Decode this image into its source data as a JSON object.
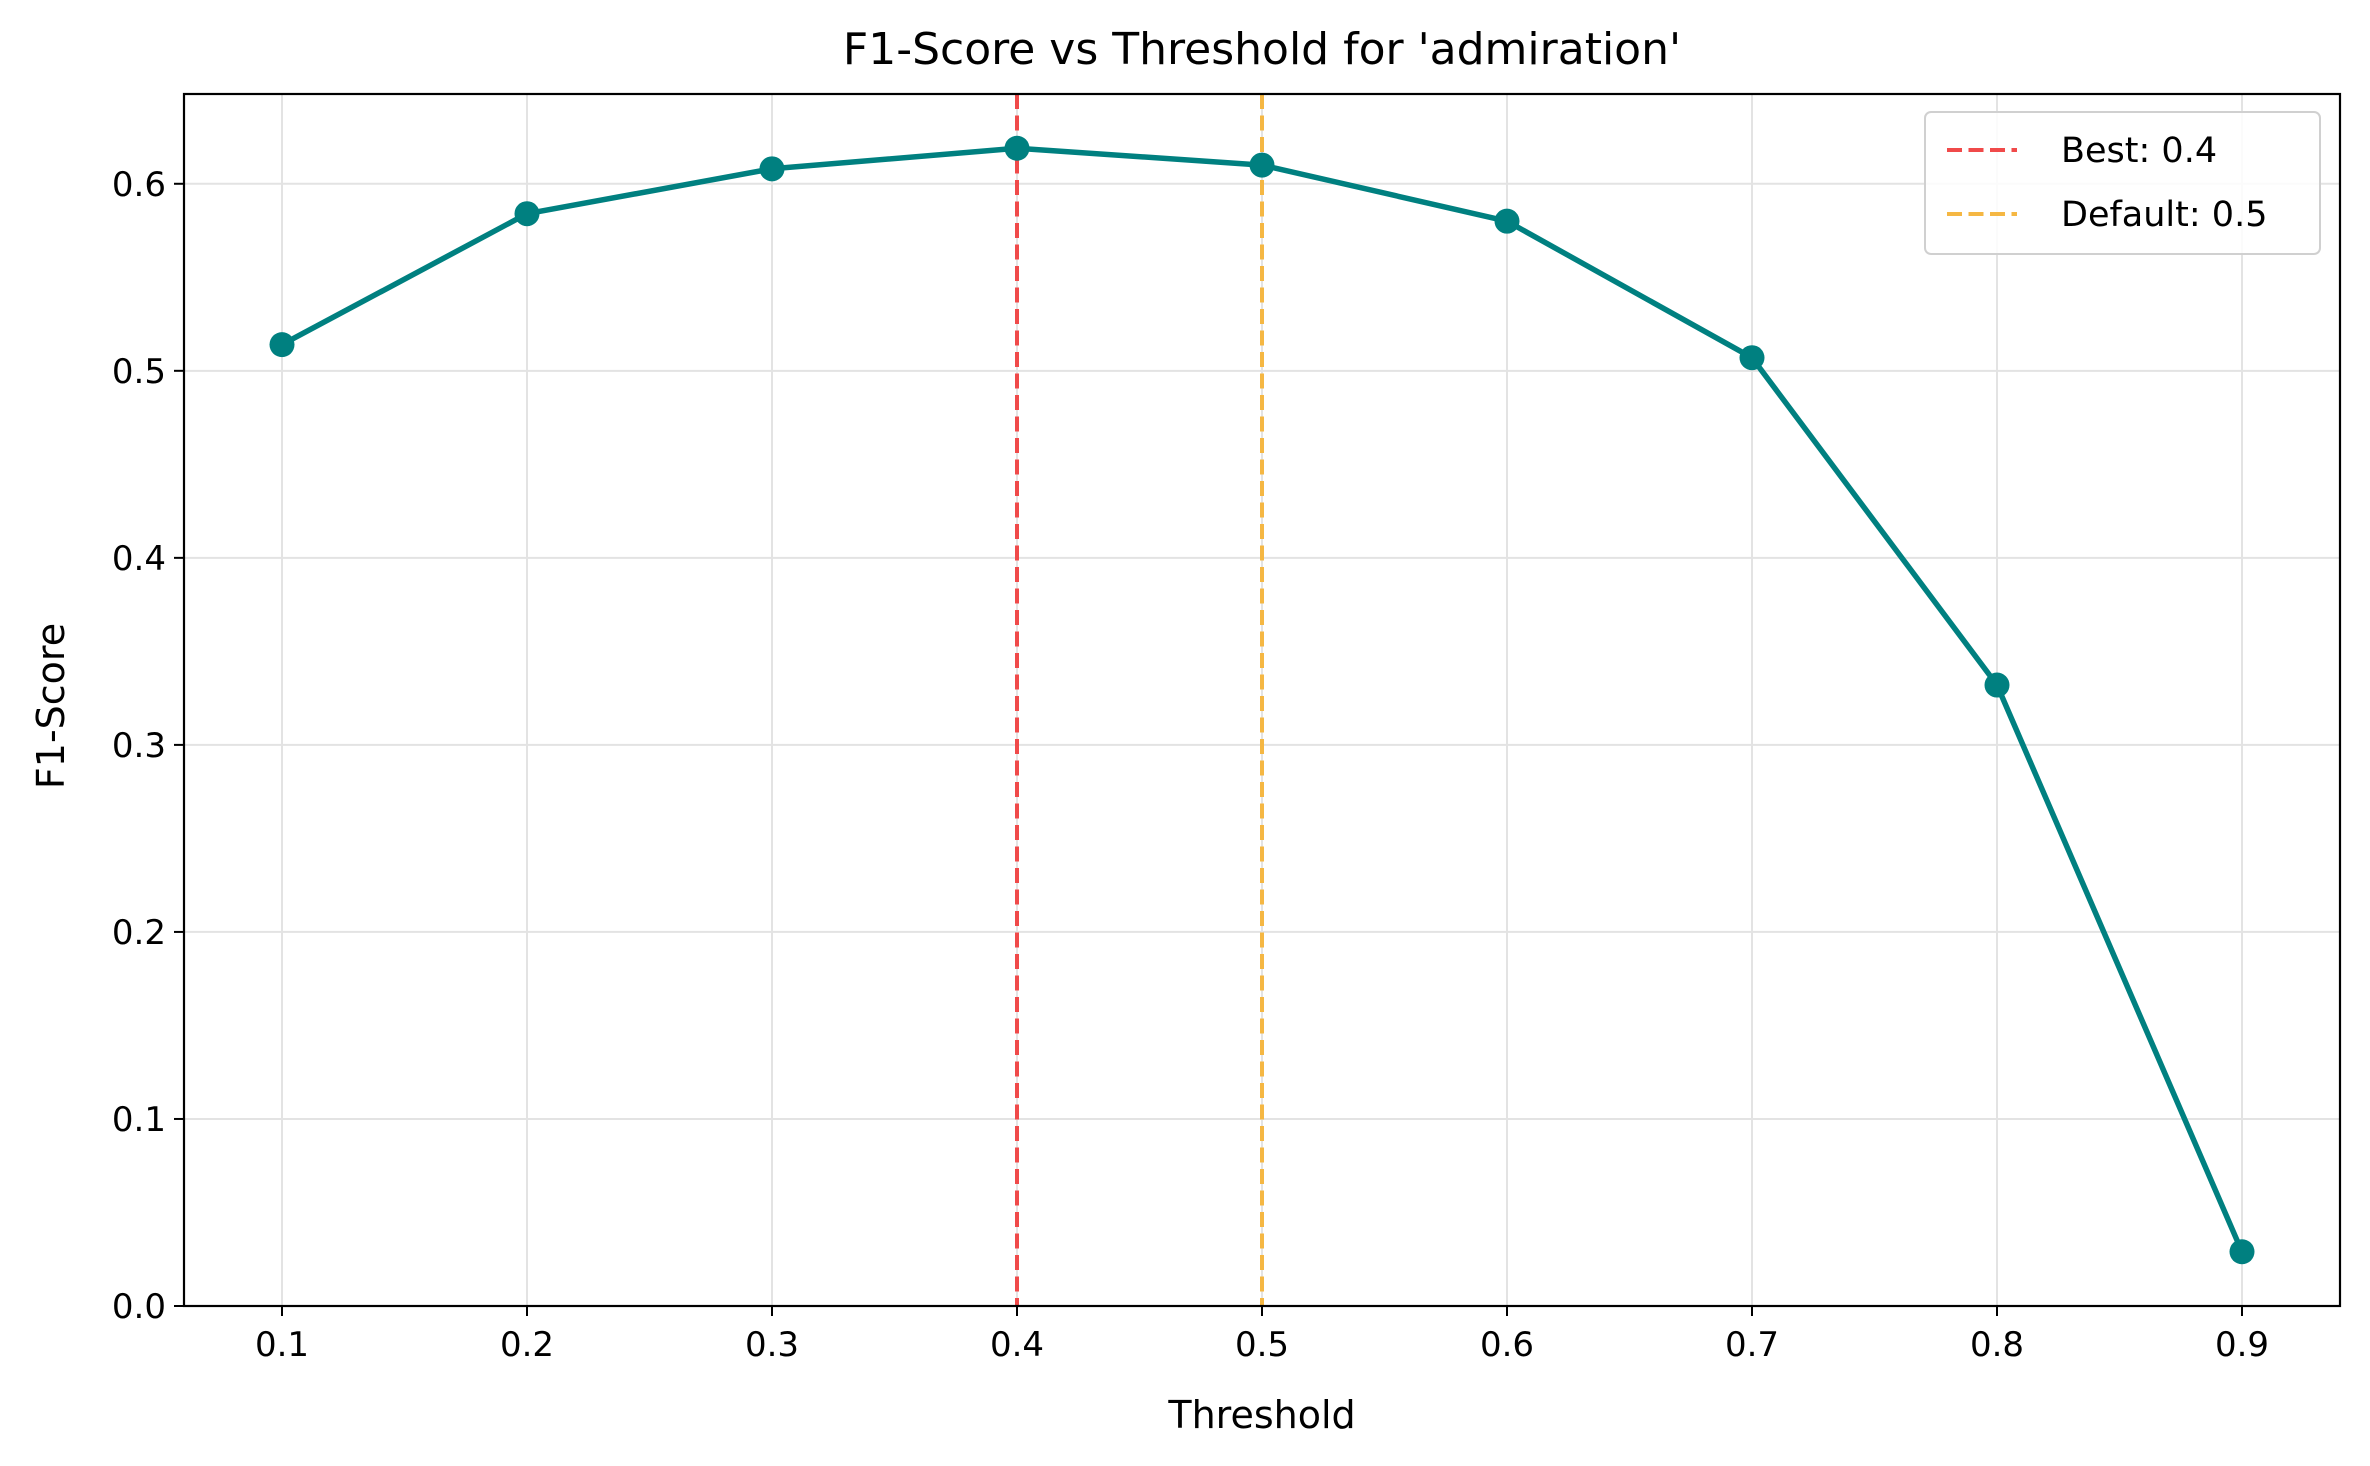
{
  "chart_data": {
    "type": "line",
    "title": "F1-Score vs Threshold for 'admiration'",
    "xlabel": "Threshold",
    "ylabel": "F1-Score",
    "xlim": [
      0.06,
      0.94
    ],
    "ylim": [
      0.0,
      0.648
    ],
    "xticks": [
      "0.1",
      "0.2",
      "0.3",
      "0.4",
      "0.5",
      "0.6",
      "0.7",
      "0.8",
      "0.9"
    ],
    "yticks": [
      "0.0",
      "0.1",
      "0.2",
      "0.3",
      "0.4",
      "0.5",
      "0.6"
    ],
    "grid": true,
    "legend_position": "top-right",
    "series": [
      {
        "x": [
          0.1,
          0.2,
          0.3,
          0.4,
          0.5,
          0.6,
          0.7,
          0.8,
          0.9
        ],
        "values": [
          0.514,
          0.584,
          0.608,
          0.619,
          0.61,
          0.58,
          0.507,
          0.332,
          0.029
        ],
        "color": "#008080"
      }
    ],
    "reference_lines": [
      {
        "name": "Best: 0.4",
        "x": 0.4,
        "color": "#f04a4a",
        "style": "dashed"
      },
      {
        "name": "Default: 0.5",
        "x": 0.5,
        "color": "#f5b743",
        "style": "dashed"
      }
    ]
  }
}
